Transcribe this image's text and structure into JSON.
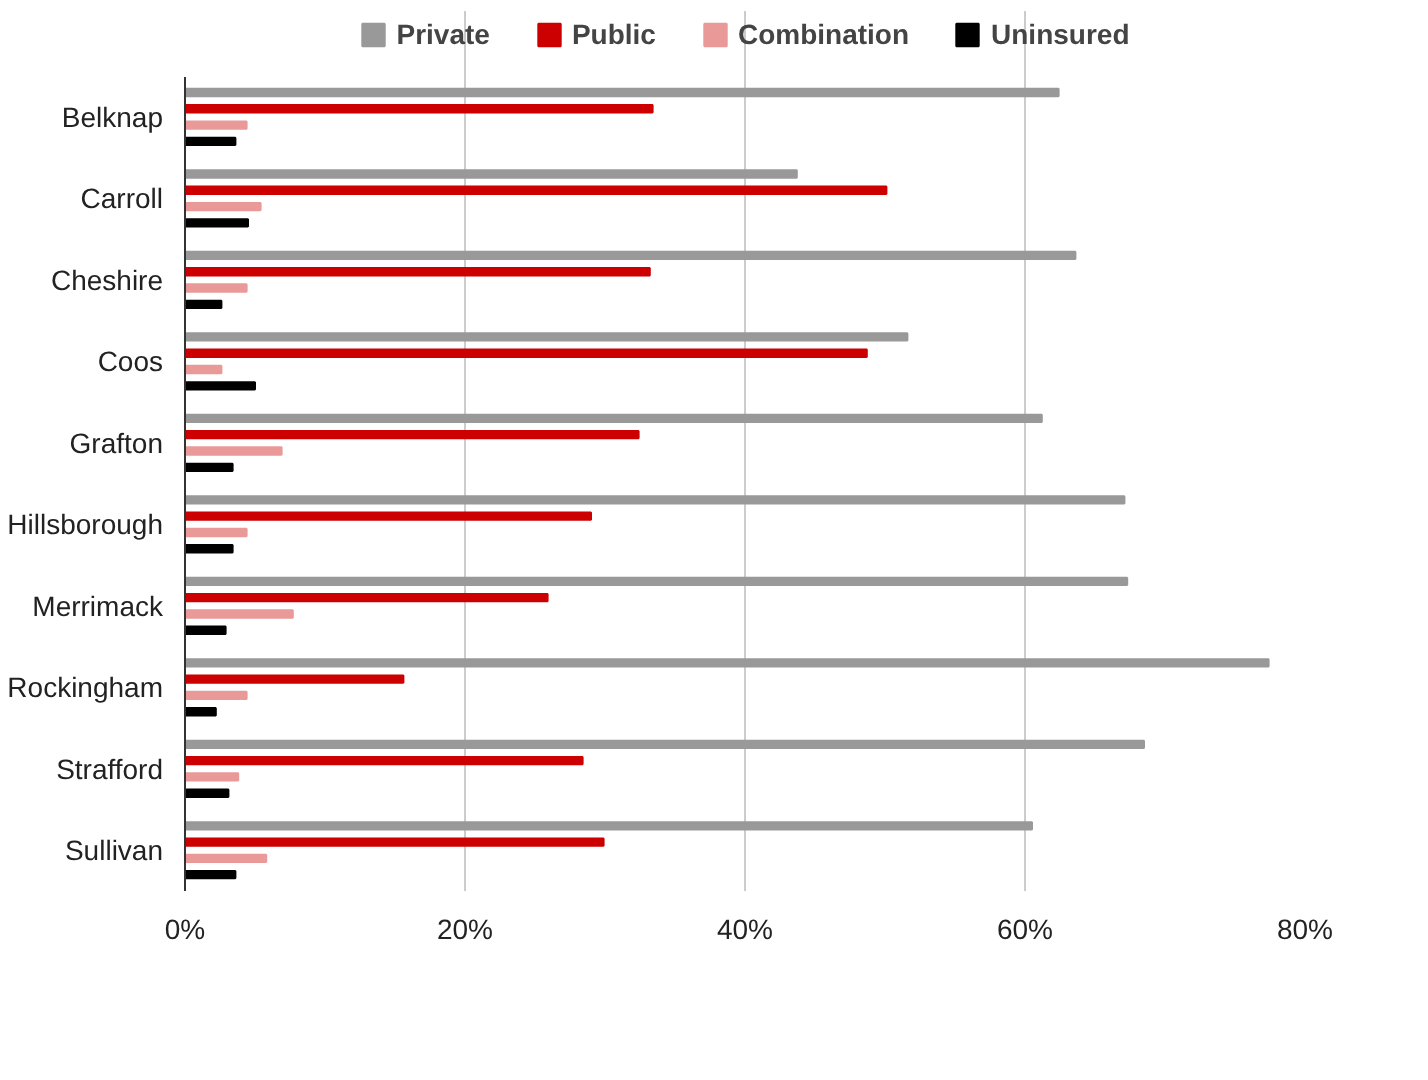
{
  "chart_data": {
    "type": "bar",
    "orientation": "horizontal",
    "categories": [
      "Belknap",
      "Carroll",
      "Cheshire",
      "Coos",
      "Grafton",
      "Hillsborough",
      "Merrimack",
      "Rockingham",
      "Strafford",
      "Sullivan"
    ],
    "series": [
      {
        "name": "Private",
        "color": "#999999",
        "values": [
          62.4,
          43.7,
          63.6,
          51.6,
          61.2,
          67.1,
          67.3,
          77.4,
          68.5,
          60.5
        ]
      },
      {
        "name": "Public",
        "color": "#cc0000",
        "values": [
          33.4,
          50.1,
          33.2,
          48.7,
          32.4,
          29.0,
          25.9,
          15.6,
          28.4,
          29.9
        ]
      },
      {
        "name": "Combination",
        "color": "#ea9999",
        "values": [
          4.4,
          5.4,
          4.4,
          2.6,
          6.9,
          4.4,
          7.7,
          4.4,
          3.8,
          5.8
        ]
      },
      {
        "name": "Uninsured",
        "color": "#000000",
        "values": [
          3.6,
          4.5,
          2.6,
          5.0,
          3.4,
          3.4,
          2.9,
          2.2,
          3.1,
          3.6
        ]
      }
    ],
    "xlim": [
      0,
      80
    ],
    "xticks": [
      {
        "value": 0,
        "label": "0%"
      },
      {
        "value": 20,
        "label": "20%"
      },
      {
        "value": 40,
        "label": "40%"
      },
      {
        "value": 60,
        "label": "60%"
      },
      {
        "value": 80,
        "label": "80%"
      }
    ],
    "grid": "x",
    "legend": "top"
  }
}
